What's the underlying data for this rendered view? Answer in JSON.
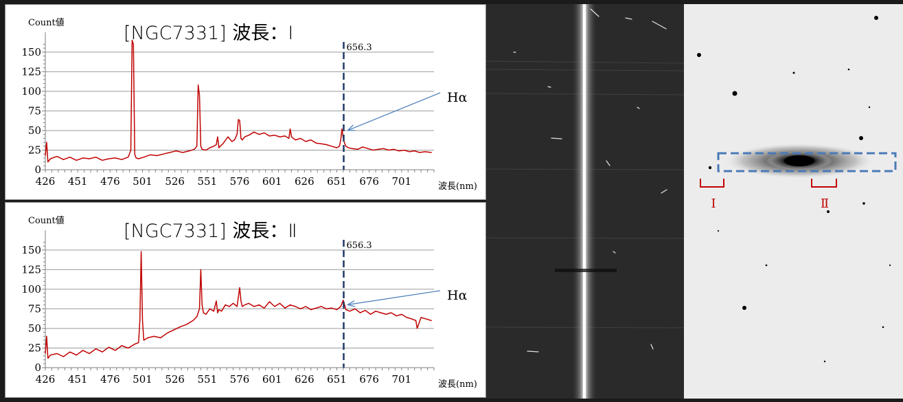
{
  "colors": {
    "spectrum_line": "#c00000",
    "marker_line": "#1f3864",
    "arrow": "#4f81bd",
    "aperture_box": "#4a7ab8",
    "bracket": "#c00000"
  },
  "chart_data": [
    {
      "type": "line",
      "title": "[NGC7331] 波長：Ⅰ",
      "ylabel": "Count値",
      "xlabel": "波長(nm)",
      "x_ticks": [
        426,
        451,
        476,
        501,
        526,
        551,
        576,
        601,
        626,
        651,
        676,
        701
      ],
      "y_ticks": [
        0,
        25,
        50,
        75,
        100,
        125,
        150
      ],
      "xlim": [
        426,
        726
      ],
      "ylim": [
        0,
        170
      ],
      "grid": true,
      "marker_value": 656.3,
      "marker_label": "656.3",
      "annotation": "Hα",
      "annotation_target": [
        656.3,
        52
      ],
      "series": [
        {
          "x": [
            426,
            427,
            428,
            430,
            435,
            440,
            445,
            450,
            455,
            460,
            465,
            470,
            475,
            480,
            485,
            490,
            492,
            493,
            494,
            495,
            496,
            498,
            502,
            507,
            512,
            517,
            522,
            527,
            532,
            537,
            541,
            543,
            544,
            545,
            546,
            547,
            550,
            553,
            556,
            558,
            559,
            560,
            561,
            563,
            567,
            570,
            572,
            574,
            575,
            576,
            577,
            578,
            580,
            583,
            587,
            591,
            595,
            599,
            603,
            607,
            611,
            614,
            615,
            616,
            619,
            623,
            627,
            631,
            635,
            639,
            643,
            647,
            651,
            653,
            654,
            655,
            656,
            657,
            658,
            660,
            663,
            667,
            671,
            675,
            679,
            683,
            687,
            691,
            695,
            699,
            703,
            707,
            711,
            715,
            719,
            724
          ],
          "y": [
            18,
            35,
            10,
            14,
            17,
            13,
            16,
            12,
            15,
            14,
            16,
            12,
            14,
            15,
            13,
            16,
            25,
            165,
            160,
            20,
            15,
            14,
            16,
            19,
            18,
            20,
            22,
            24,
            22,
            24,
            26,
            30,
            108,
            95,
            30,
            26,
            25,
            28,
            30,
            32,
            42,
            28,
            30,
            33,
            42,
            36,
            38,
            45,
            64,
            63,
            40,
            38,
            42,
            44,
            48,
            45,
            47,
            43,
            44,
            42,
            43,
            40,
            52,
            42,
            38,
            40,
            36,
            38,
            34,
            33,
            32,
            30,
            28,
            30,
            38,
            52,
            40,
            34,
            30,
            28,
            27,
            26,
            29,
            27,
            25,
            26,
            27,
            25,
            26,
            24,
            25,
            23,
            24,
            22,
            23,
            22
          ]
        }
      ]
    },
    {
      "type": "line",
      "title": "[NGC7331] 波長：Ⅱ",
      "ylabel": "Count値",
      "xlabel": "波長(nm)",
      "x_ticks": [
        426,
        451,
        476,
        501,
        526,
        551,
        576,
        601,
        626,
        651,
        676,
        701
      ],
      "y_ticks": [
        0,
        25,
        50,
        75,
        100,
        125,
        150
      ],
      "xlim": [
        426,
        726
      ],
      "ylim": [
        0,
        170
      ],
      "grid": true,
      "marker_value": 656.3,
      "marker_label": "656.3",
      "annotation": "Hα",
      "annotation_target": [
        656.3,
        82
      ],
      "series": [
        {
          "x": [
            426,
            427,
            428,
            430,
            435,
            440,
            445,
            450,
            455,
            460,
            465,
            470,
            475,
            480,
            485,
            490,
            495,
            498,
            499,
            500,
            501,
            502,
            505,
            510,
            515,
            520,
            525,
            530,
            535,
            540,
            543,
            545,
            546,
            547,
            548,
            550,
            553,
            556,
            558,
            559,
            560,
            562,
            565,
            568,
            571,
            574,
            576,
            577,
            578,
            580,
            583,
            587,
            591,
            595,
            599,
            603,
            607,
            611,
            615,
            619,
            623,
            627,
            631,
            635,
            639,
            643,
            647,
            651,
            654,
            656,
            657,
            658,
            661,
            665,
            669,
            673,
            677,
            681,
            685,
            689,
            693,
            697,
            701,
            705,
            709,
            712,
            713,
            716,
            720,
            724
          ],
          "y": [
            18,
            40,
            12,
            16,
            18,
            14,
            20,
            16,
            22,
            18,
            24,
            20,
            26,
            22,
            28,
            25,
            30,
            32,
            60,
            148,
            60,
            35,
            38,
            40,
            38,
            44,
            48,
            52,
            55,
            60,
            65,
            75,
            125,
            80,
            70,
            68,
            75,
            72,
            85,
            70,
            74,
            72,
            80,
            78,
            82,
            78,
            102,
            85,
            78,
            80,
            82,
            78,
            80,
            76,
            84,
            78,
            82,
            76,
            80,
            78,
            75,
            78,
            74,
            76,
            78,
            75,
            76,
            74,
            78,
            86,
            80,
            74,
            72,
            75,
            70,
            73,
            68,
            72,
            70,
            68,
            70,
            66,
            68,
            64,
            62,
            60,
            50,
            64,
            62,
            60
          ]
        }
      ]
    }
  ],
  "galaxy_labels": {
    "region_1": "Ⅰ",
    "region_2": "Ⅱ"
  }
}
